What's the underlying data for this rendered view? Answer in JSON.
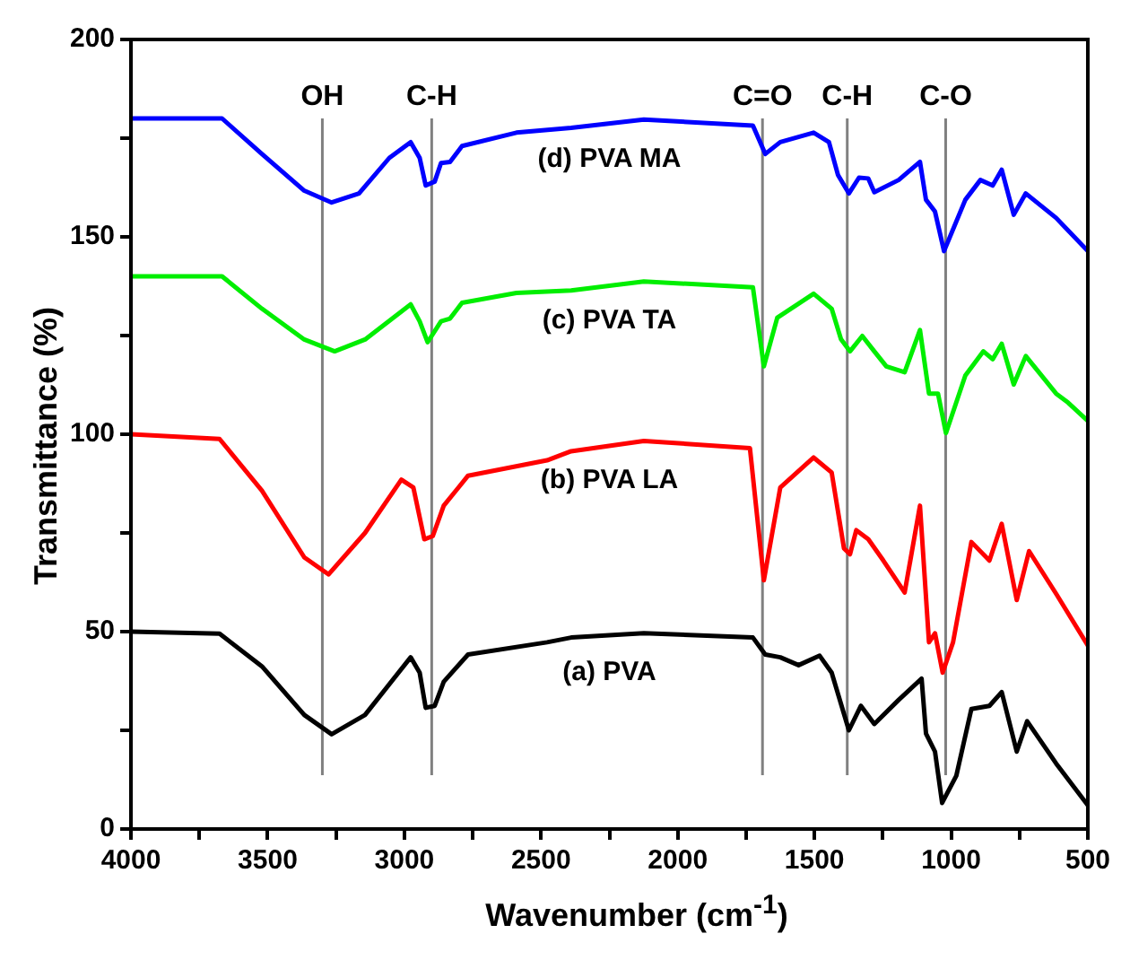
{
  "chart_data": {
    "type": "line",
    "xlabel": "Wavenumber (cm$^{-1}$)",
    "ylabel": "Transmittance (%)",
    "xlim": [
      4000,
      500
    ],
    "ylim": [
      0,
      200
    ],
    "xticks": [
      4000,
      {
        "value": 3750,
        "label": null
      },
      3500,
      {
        "value": 3250,
        "label": null
      },
      3000,
      {
        "value": 2750,
        "label": null
      },
      2500,
      {
        "value": 2250,
        "label": null
      },
      2000,
      {
        "value": 1750,
        "label": null
      },
      1500,
      {
        "value": 1250,
        "label": null
      },
      1000,
      {
        "value": 750,
        "label": null
      },
      500
    ],
    "yticks": [
      0,
      {
        "value": 25,
        "label": null
      },
      50,
      {
        "value": 75,
        "label": null
      },
      100,
      {
        "value": 125,
        "label": null
      },
      150,
      {
        "value": 175,
        "label": null
      },
      200
    ],
    "grid": false,
    "legend": false,
    "ref_lines": [
      {
        "axis": "x",
        "value": 3300,
        "label": "OH",
        "color": "#808080"
      },
      {
        "axis": "x",
        "value": 2900,
        "label": "C-H",
        "color": "#808080"
      },
      {
        "axis": "x",
        "value": 1690,
        "label": "C=O",
        "color": "#808080"
      },
      {
        "axis": "x",
        "value": 1380,
        "label": "C-H",
        "color": "#808080"
      },
      {
        "axis": "x",
        "value": 1020,
        "label": "C-O",
        "color": "#808080"
      }
    ],
    "series": [
      {
        "name": "(d) PVA MA",
        "color": "#0000ff",
        "x": [
          4000,
          3667,
          3521,
          3366,
          3266,
          3166,
          3055,
          2977,
          2944,
          2922,
          2889,
          2866,
          2833,
          2789,
          2590,
          2390,
          2124,
          1725,
          1680,
          1625,
          1503,
          1447,
          1414,
          1374,
          1337,
          1303,
          1281,
          1192,
          1114,
          1092,
          1059,
          1026,
          948,
          893,
          848,
          815,
          771,
          727,
          616,
          500
        ],
        "values": [
          180,
          180,
          171,
          161.7,
          158.7,
          161,
          170,
          174,
          170,
          163,
          164,
          168.7,
          169,
          173,
          176.4,
          177.6,
          179.7,
          178.2,
          171,
          174,
          176.4,
          174,
          165.7,
          161,
          165,
          164.8,
          161.3,
          164.4,
          169,
          159.4,
          156.4,
          146.4,
          159.4,
          164.4,
          163,
          167,
          155.6,
          161,
          154.8,
          146.4
        ]
      },
      {
        "name": "(c) PVA TA",
        "color": "#00ee00",
        "x": [
          4000,
          3667,
          3521,
          3366,
          3255,
          3144,
          2977,
          2944,
          2915,
          2866,
          2833,
          2789,
          2590,
          2390,
          2124,
          1725,
          1685,
          1636,
          1503,
          1437,
          1403,
          1370,
          1325,
          1281,
          1237,
          1170,
          1114,
          1081,
          1048,
          1019,
          948,
          882,
          848,
          815,
          771,
          727,
          616,
          572,
          500
        ],
        "values": [
          140,
          140,
          131.8,
          124,
          121,
          124,
          132.9,
          128.6,
          123.3,
          128.6,
          129.3,
          133.3,
          135.8,
          136.4,
          138.7,
          137.2,
          117.2,
          129.5,
          135.6,
          131.8,
          124.1,
          121,
          124.9,
          121,
          117.2,
          115.7,
          126.4,
          110.3,
          110.3,
          100.3,
          114.9,
          121,
          119,
          122.9,
          112.6,
          119.8,
          110.3,
          108,
          103.4
        ]
      },
      {
        "name": "(b) PVA LA",
        "color": "#ff0000",
        "x": [
          4000,
          3676,
          3521,
          3366,
          3277,
          3144,
          3011,
          2967,
          2927,
          2896,
          2856,
          2767,
          2478,
          2390,
          2124,
          1736,
          1685,
          1625,
          1503,
          1437,
          1392,
          1370,
          1347,
          1303,
          1248,
          1170,
          1114,
          1081,
          1059,
          1031,
          993,
          926,
          860,
          815,
          760,
          715,
          616,
          500
        ],
        "values": [
          100,
          98.8,
          85.7,
          68.8,
          64.5,
          75,
          88.5,
          86.5,
          73.4,
          74.2,
          81.9,
          89.5,
          93.4,
          95.7,
          98.3,
          96.5,
          63,
          86.5,
          94.1,
          90.3,
          71.1,
          69.6,
          75.7,
          73.4,
          68,
          59.9,
          81.9,
          47.3,
          49.6,
          39.6,
          47.3,
          72.7,
          68,
          77.3,
          58,
          70.4,
          59.6,
          46.5
        ]
      },
      {
        "name": "(a) PVA",
        "color": "#000000",
        "x": [
          4000,
          3676,
          3521,
          3366,
          3266,
          3144,
          2977,
          2944,
          2922,
          2889,
          2856,
          2767,
          2478,
          2390,
          2124,
          1725,
          1680,
          1625,
          1558,
          1481,
          1437,
          1374,
          1330,
          1281,
          1192,
          1108,
          1092,
          1059,
          1033,
          981,
          926,
          860,
          815,
          760,
          722,
          616,
          500
        ],
        "values": [
          50,
          49.5,
          41.2,
          28.9,
          24,
          28.9,
          43.5,
          39.6,
          30.7,
          31.2,
          37.3,
          44.2,
          47.3,
          48.5,
          49.6,
          48.5,
          44.2,
          43.5,
          41.5,
          43.9,
          39.6,
          25,
          31.2,
          26.6,
          32.7,
          38.1,
          24.2,
          19.6,
          6.6,
          13.5,
          30.4,
          31.2,
          34.7,
          19.6,
          27.3,
          16.6,
          6
        ]
      }
    ]
  }
}
